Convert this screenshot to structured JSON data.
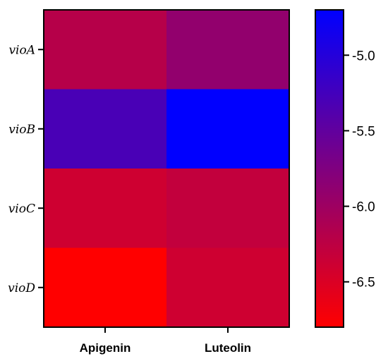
{
  "chart_data": {
    "type": "heatmap",
    "rows": [
      "vioA",
      "vioB",
      "vioC",
      "vioD"
    ],
    "columns": [
      "Apigenin",
      "Luteolin"
    ],
    "values": [
      [
        -6.2,
        -5.9
      ],
      [
        -5.3,
        -4.7
      ],
      [
        -6.4,
        -6.3
      ],
      [
        -6.8,
        -6.4
      ]
    ],
    "colorbar": {
      "min": -6.8,
      "max": -4.7,
      "low_color": "#ff0000",
      "high_color": "#0000ff",
      "ticks": [
        -5.0,
        -5.5,
        -6.0,
        -6.5
      ],
      "tick_labels": [
        "-5.0",
        "-5.5",
        "-6.0",
        "-6.5"
      ]
    }
  }
}
